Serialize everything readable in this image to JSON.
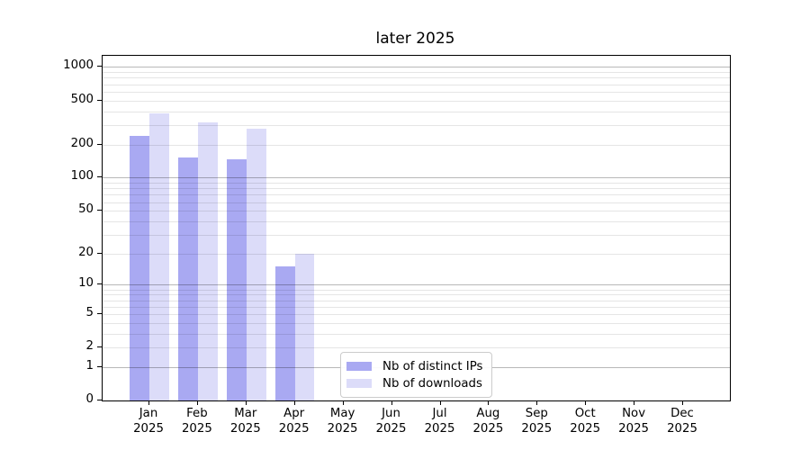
{
  "chart_data": {
    "type": "bar",
    "title": "later 2025",
    "categories": [
      "Jan",
      "Feb",
      "Mar",
      "Apr",
      "May",
      "Jun",
      "Jul",
      "Aug",
      "Sep",
      "Oct",
      "Nov",
      "Dec"
    ],
    "category_year": "2025",
    "series": [
      {
        "name": "Nb of distinct IPs",
        "color": "#a9a9f2",
        "values": [
          238,
          153,
          147,
          15,
          0,
          0,
          0,
          0,
          0,
          0,
          0,
          0
        ]
      },
      {
        "name": "Nb of downloads",
        "color": "#dcdcf9",
        "values": [
          385,
          315,
          276,
          20,
          0,
          0,
          0,
          0,
          0,
          0,
          0,
          0
        ]
      }
    ],
    "yscale": "log1p",
    "ylim": [
      0,
      1260
    ],
    "ytick_labels": [
      1000,
      500,
      200,
      100,
      50,
      20,
      10,
      5,
      2,
      1,
      0
    ],
    "grid_major": [
      1,
      10,
      100,
      1000
    ],
    "grid_minor": [
      2,
      3,
      4,
      5,
      6,
      7,
      8,
      9,
      20,
      30,
      40,
      50,
      60,
      70,
      80,
      90,
      200,
      300,
      400,
      500,
      600,
      700,
      800,
      900
    ],
    "grid": "horizontal-only",
    "legend_position": "inside-bottom-center-left",
    "colors": {
      "major_grid": "#b8b8b8",
      "minor_grid": "#e6e6e6",
      "axis": "#000000",
      "text": "#000000",
      "background": "#ffffff"
    }
  }
}
